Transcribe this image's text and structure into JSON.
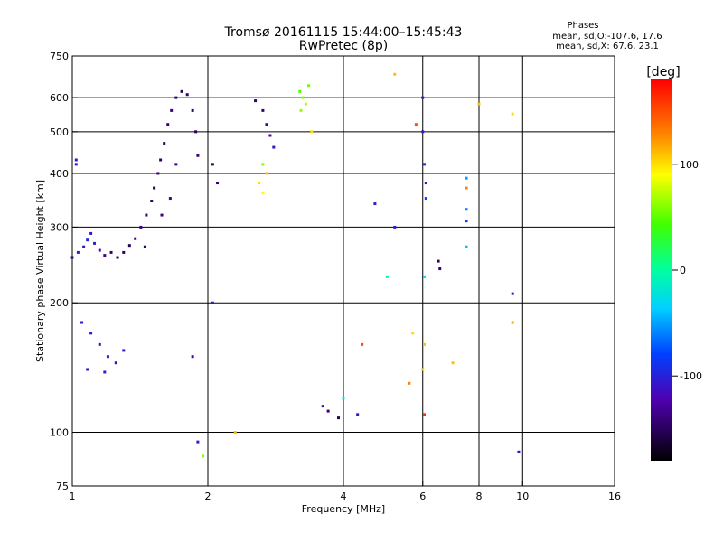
{
  "header": {
    "title_line1": "Tromsø 20161115 15:44:00–15:45:43",
    "title_line2": "RwPretec (8p)",
    "stats_title": "Phases",
    "stats_o": "mean, sd,O:-107.6, 17.6",
    "stats_x": "mean, sd,X:  67.6, 23.1"
  },
  "colorbar": {
    "label": "[deg]",
    "range": [
      -180,
      180
    ],
    "ticks": [
      {
        "value": 100,
        "label": "100"
      },
      {
        "value": 0,
        "label": "0"
      },
      {
        "value": -100,
        "label": "-100"
      }
    ]
  },
  "chart_data": {
    "type": "scatter",
    "xlabel": "Frequency [MHz]",
    "ylabel": "Stationary phase Virtual Height [km]",
    "x_scale": "log",
    "y_scale": "log",
    "xlim": [
      1,
      16
    ],
    "ylim": [
      75,
      750
    ],
    "x_ticks": [
      1,
      2,
      4,
      6,
      8,
      10,
      16
    ],
    "y_ticks": [
      75,
      100,
      200,
      300,
      400,
      500,
      600,
      750
    ],
    "x_grid": [
      2,
      4,
      6,
      8,
      10
    ],
    "y_grid": [
      100,
      200,
      300,
      400,
      500,
      600
    ],
    "grid": true,
    "points": [
      {
        "x": 1.0,
        "y": 255,
        "phase": -110
      },
      {
        "x": 1.03,
        "y": 262,
        "phase": -100
      },
      {
        "x": 1.06,
        "y": 270,
        "phase": -105
      },
      {
        "x": 1.08,
        "y": 280,
        "phase": -95
      },
      {
        "x": 1.1,
        "y": 290,
        "phase": -110
      },
      {
        "x": 1.12,
        "y": 275,
        "phase": -100
      },
      {
        "x": 1.15,
        "y": 265,
        "phase": -120
      },
      {
        "x": 1.18,
        "y": 258,
        "phase": -130
      },
      {
        "x": 1.22,
        "y": 262,
        "phase": -140
      },
      {
        "x": 1.26,
        "y": 255,
        "phase": -150
      },
      {
        "x": 1.3,
        "y": 262,
        "phase": -145
      },
      {
        "x": 1.34,
        "y": 272,
        "phase": -150
      },
      {
        "x": 1.38,
        "y": 282,
        "phase": -140
      },
      {
        "x": 1.42,
        "y": 300,
        "phase": -135
      },
      {
        "x": 1.46,
        "y": 320,
        "phase": -140
      },
      {
        "x": 1.5,
        "y": 345,
        "phase": -145
      },
      {
        "x": 1.52,
        "y": 370,
        "phase": -150
      },
      {
        "x": 1.55,
        "y": 400,
        "phase": -140
      },
      {
        "x": 1.57,
        "y": 430,
        "phase": -145
      },
      {
        "x": 1.6,
        "y": 470,
        "phase": -150
      },
      {
        "x": 1.63,
        "y": 520,
        "phase": -140
      },
      {
        "x": 1.66,
        "y": 560,
        "phase": -135
      },
      {
        "x": 1.7,
        "y": 600,
        "phase": -145
      },
      {
        "x": 1.75,
        "y": 620,
        "phase": -150
      },
      {
        "x": 1.8,
        "y": 610,
        "phase": -140
      },
      {
        "x": 1.85,
        "y": 560,
        "phase": -145
      },
      {
        "x": 1.88,
        "y": 500,
        "phase": -150
      },
      {
        "x": 1.9,
        "y": 440,
        "phase": -140
      },
      {
        "x": 1.65,
        "y": 350,
        "phase": -130
      },
      {
        "x": 1.58,
        "y": 320,
        "phase": -135
      },
      {
        "x": 1.7,
        "y": 420,
        "phase": -130
      },
      {
        "x": 1.45,
        "y": 270,
        "phase": -145
      },
      {
        "x": 1.05,
        "y": 180,
        "phase": -110
      },
      {
        "x": 1.1,
        "y": 170,
        "phase": -105
      },
      {
        "x": 1.15,
        "y": 160,
        "phase": -110
      },
      {
        "x": 1.2,
        "y": 150,
        "phase": -100
      },
      {
        "x": 1.25,
        "y": 145,
        "phase": -110
      },
      {
        "x": 1.3,
        "y": 155,
        "phase": -105
      },
      {
        "x": 1.08,
        "y": 140,
        "phase": -110
      },
      {
        "x": 1.18,
        "y": 138,
        "phase": -100
      },
      {
        "x": 1.02,
        "y": 420,
        "phase": -110
      },
      {
        "x": 1.02,
        "y": 430,
        "phase": -105
      },
      {
        "x": 2.55,
        "y": 590,
        "phase": -145
      },
      {
        "x": 2.65,
        "y": 560,
        "phase": -140
      },
      {
        "x": 2.7,
        "y": 520,
        "phase": -130
      },
      {
        "x": 2.75,
        "y": 490,
        "phase": -120
      },
      {
        "x": 2.8,
        "y": 460,
        "phase": -110
      },
      {
        "x": 2.6,
        "y": 380,
        "phase": 100
      },
      {
        "x": 2.65,
        "y": 360,
        "phase": 90
      },
      {
        "x": 2.7,
        "y": 400,
        "phase": 110
      },
      {
        "x": 2.65,
        "y": 420,
        "phase": 60
      },
      {
        "x": 3.2,
        "y": 620,
        "phase": 50
      },
      {
        "x": 3.25,
        "y": 600,
        "phase": 60
      },
      {
        "x": 3.3,
        "y": 580,
        "phase": 70
      },
      {
        "x": 3.35,
        "y": 640,
        "phase": 55
      },
      {
        "x": 3.22,
        "y": 560,
        "phase": 65
      },
      {
        "x": 3.4,
        "y": 500,
        "phase": 100
      },
      {
        "x": 2.05,
        "y": 420,
        "phase": -150
      },
      {
        "x": 2.1,
        "y": 380,
        "phase": -140
      },
      {
        "x": 2.05,
        "y": 200,
        "phase": -110
      },
      {
        "x": 1.85,
        "y": 150,
        "phase": -120
      },
      {
        "x": 1.9,
        "y": 95,
        "phase": -100
      },
      {
        "x": 1.95,
        "y": 88,
        "phase": 60
      },
      {
        "x": 2.3,
        "y": 100,
        "phase": 110
      },
      {
        "x": 3.6,
        "y": 115,
        "phase": -110
      },
      {
        "x": 3.7,
        "y": 112,
        "phase": -140
      },
      {
        "x": 3.9,
        "y": 108,
        "phase": -150
      },
      {
        "x": 4.0,
        "y": 120,
        "phase": -20
      },
      {
        "x": 4.3,
        "y": 110,
        "phase": -110
      },
      {
        "x": 4.4,
        "y": 160,
        "phase": 150
      },
      {
        "x": 4.7,
        "y": 340,
        "phase": -100
      },
      {
        "x": 5.0,
        "y": 230,
        "phase": -10
      },
      {
        "x": 5.2,
        "y": 300,
        "phase": -100
      },
      {
        "x": 5.2,
        "y": 680,
        "phase": 110
      },
      {
        "x": 5.6,
        "y": 130,
        "phase": 130
      },
      {
        "x": 5.7,
        "y": 170,
        "phase": 100
      },
      {
        "x": 5.8,
        "y": 520,
        "phase": 150
      },
      {
        "x": 6.0,
        "y": 600,
        "phase": -110
      },
      {
        "x": 6.0,
        "y": 500,
        "phase": -100
      },
      {
        "x": 6.05,
        "y": 420,
        "phase": -90
      },
      {
        "x": 6.1,
        "y": 380,
        "phase": -110
      },
      {
        "x": 6.1,
        "y": 350,
        "phase": -80
      },
      {
        "x": 6.05,
        "y": 230,
        "phase": -30
      },
      {
        "x": 6.0,
        "y": 140,
        "phase": 100
      },
      {
        "x": 6.05,
        "y": 110,
        "phase": 160
      },
      {
        "x": 6.05,
        "y": 160,
        "phase": 110
      },
      {
        "x": 6.5,
        "y": 250,
        "phase": -150
      },
      {
        "x": 6.55,
        "y": 240,
        "phase": -140
      },
      {
        "x": 7.0,
        "y": 145,
        "phase": 110
      },
      {
        "x": 7.5,
        "y": 390,
        "phase": -50
      },
      {
        "x": 7.5,
        "y": 370,
        "phase": 130
      },
      {
        "x": 7.5,
        "y": 330,
        "phase": -60
      },
      {
        "x": 7.5,
        "y": 310,
        "phase": -80
      },
      {
        "x": 7.5,
        "y": 270,
        "phase": -40
      },
      {
        "x": 8.0,
        "y": 580,
        "phase": 110
      },
      {
        "x": 9.5,
        "y": 550,
        "phase": 100
      },
      {
        "x": 9.5,
        "y": 210,
        "phase": -110
      },
      {
        "x": 9.5,
        "y": 180,
        "phase": 120
      },
      {
        "x": 9.8,
        "y": 90,
        "phase": -110
      }
    ]
  }
}
